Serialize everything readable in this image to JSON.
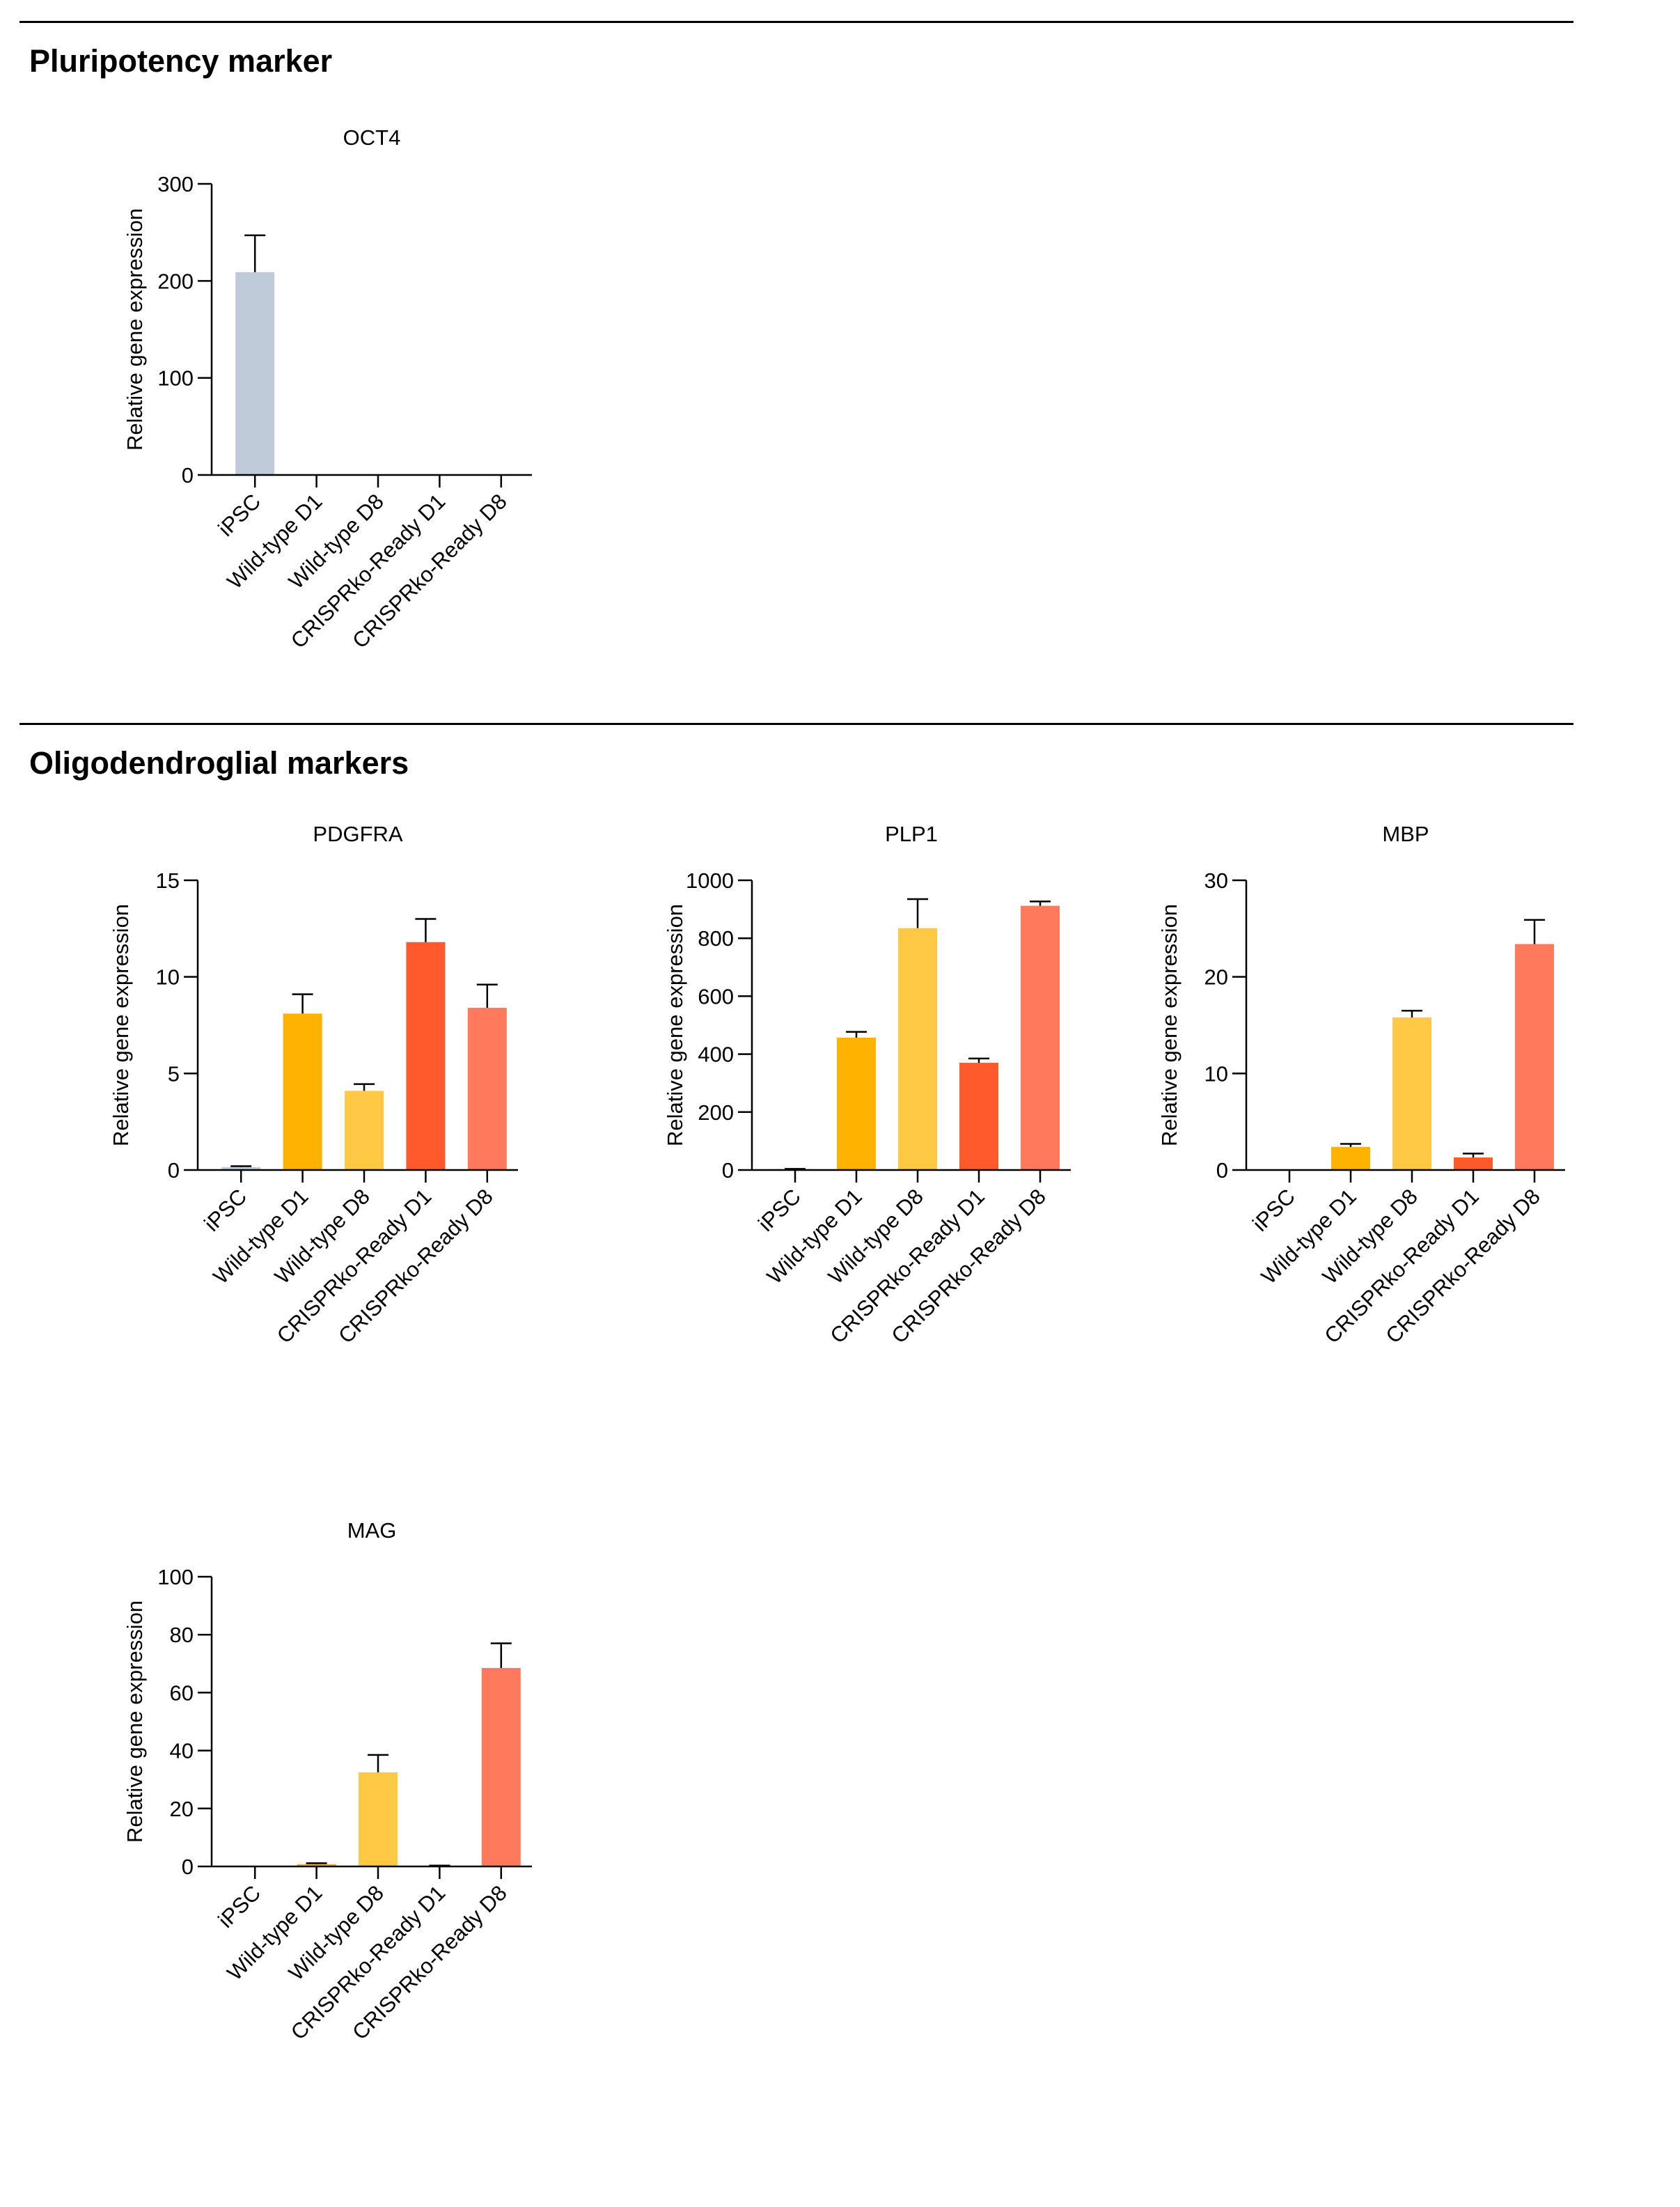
{
  "sections": [
    {
      "title": "Pluripotency marker"
    },
    {
      "title": "Oligodendroglial markers"
    }
  ],
  "categories": [
    "iPSC",
    "Wild-type D1",
    "Wild-type D8",
    "CRISPRko-Ready D1",
    "CRISPRko-Ready D8"
  ],
  "colors": [
    "#bfcbd9",
    "#ffb300",
    "#ffc845",
    "#ff5a2b",
    "#ff7a5c"
  ],
  "chart_data": [
    {
      "type": "bar",
      "title": "OCT4",
      "ylabel": "Relative gene expression",
      "categories": [
        "iPSC",
        "Wild-type D1",
        "Wild-type D8",
        "CRISPRko-Ready D1",
        "CRISPRko-Ready D8"
      ],
      "values": [
        209,
        0,
        0,
        0,
        0
      ],
      "errors": [
        38,
        0,
        0,
        0,
        0
      ],
      "ylim": [
        0,
        300
      ],
      "yticks": [
        0,
        100,
        200,
        300
      ]
    },
    {
      "type": "bar",
      "title": "PDGFRA",
      "ylabel": "Relative gene expression",
      "categories": [
        "iPSC",
        "Wild-type D1",
        "Wild-type D8",
        "CRISPRko-Ready D1",
        "CRISPRko-Ready D8"
      ],
      "values": [
        0.15,
        8.1,
        4.1,
        11.8,
        8.4
      ],
      "errors": [
        0.05,
        1.0,
        0.35,
        1.2,
        1.2
      ],
      "ylim": [
        0,
        15
      ],
      "yticks": [
        0,
        5,
        10,
        15
      ]
    },
    {
      "type": "bar",
      "title": "PLP1",
      "ylabel": "Relative gene expression",
      "categories": [
        "iPSC",
        "Wild-type D1",
        "Wild-type D8",
        "CRISPRko-Ready D1",
        "CRISPRko-Ready D8"
      ],
      "values": [
        3,
        457,
        835,
        370,
        912
      ],
      "errors": [
        1,
        20,
        100,
        15,
        15
      ],
      "ylim": [
        0,
        1000
      ],
      "yticks": [
        0,
        200,
        400,
        600,
        800,
        1000
      ]
    },
    {
      "type": "bar",
      "title": "MBP",
      "ylabel": "Relative gene expression",
      "categories": [
        "iPSC",
        "Wild-type D1",
        "Wild-type D8",
        "CRISPRko-Ready D1",
        "CRISPRko-Ready D8"
      ],
      "values": [
        0,
        2.4,
        15.8,
        1.3,
        23.4
      ],
      "errors": [
        0,
        0.3,
        0.7,
        0.4,
        2.5
      ],
      "ylim": [
        0,
        30
      ],
      "yticks": [
        0,
        10,
        20,
        30
      ]
    },
    {
      "type": "bar",
      "title": "MAG",
      "ylabel": "Relative gene expression",
      "categories": [
        "iPSC",
        "Wild-type D1",
        "Wild-type D8",
        "CRISPRko-Ready D1",
        "CRISPRko-Ready D8"
      ],
      "values": [
        0,
        0.8,
        32.5,
        0.2,
        68.5
      ],
      "errors": [
        0,
        0.3,
        6.0,
        0.1,
        8.5
      ],
      "ylim": [
        0,
        100
      ],
      "yticks": [
        0,
        20,
        40,
        60,
        80,
        100
      ]
    }
  ]
}
